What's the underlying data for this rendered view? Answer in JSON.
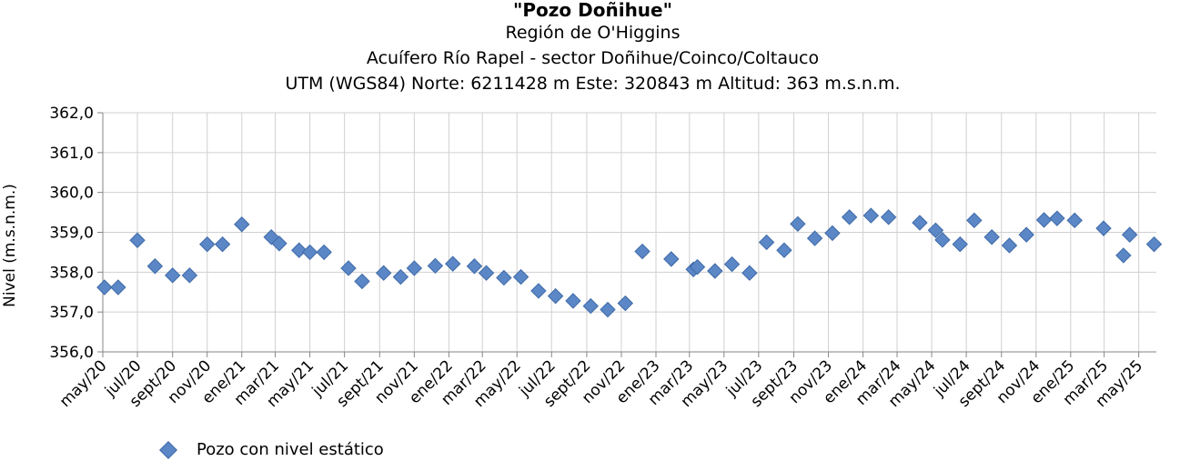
{
  "chart_data": {
    "type": "scatter",
    "title": "\"Pozo Doñihue\"",
    "subtitles": [
      "Región de O'Higgins",
      "Acuífero Río Rapel - sector Doñihue/Coinco/Coltauco",
      "UTM (WGS84) Norte: 6211428 m  Este: 320843 m   Altitud: 363 m.s.n.m."
    ],
    "ylabel": "Nivel (m.s.n.m.)",
    "xlabel": "",
    "ylim": [
      356.0,
      362.0
    ],
    "yticks": [
      "356,0",
      "357,0",
      "358,0",
      "359,0",
      "360,0",
      "361,0",
      "362,0"
    ],
    "xlim": [
      "2020-05-01",
      "2025-06-01"
    ],
    "xticks": [
      {
        "date": "2020-05-01",
        "label": "may/20"
      },
      {
        "date": "2020-07-01",
        "label": "jul/20"
      },
      {
        "date": "2020-09-01",
        "label": "sept/20"
      },
      {
        "date": "2020-11-01",
        "label": "nov/20"
      },
      {
        "date": "2021-01-01",
        "label": "ene/21"
      },
      {
        "date": "2021-03-01",
        "label": "mar/21"
      },
      {
        "date": "2021-05-01",
        "label": "may/21"
      },
      {
        "date": "2021-07-01",
        "label": "jul/21"
      },
      {
        "date": "2021-09-01",
        "label": "sept/21"
      },
      {
        "date": "2021-11-01",
        "label": "nov/21"
      },
      {
        "date": "2022-01-01",
        "label": "ene/22"
      },
      {
        "date": "2022-03-01",
        "label": "mar/22"
      },
      {
        "date": "2022-05-01",
        "label": "may/22"
      },
      {
        "date": "2022-07-01",
        "label": "jul/22"
      },
      {
        "date": "2022-09-01",
        "label": "sept/22"
      },
      {
        "date": "2022-11-01",
        "label": "nov/22"
      },
      {
        "date": "2023-01-01",
        "label": "ene/23"
      },
      {
        "date": "2023-03-01",
        "label": "mar/23"
      },
      {
        "date": "2023-05-01",
        "label": "may/23"
      },
      {
        "date": "2023-07-01",
        "label": "jul/23"
      },
      {
        "date": "2023-09-01",
        "label": "sept/23"
      },
      {
        "date": "2023-11-01",
        "label": "nov/23"
      },
      {
        "date": "2024-01-01",
        "label": "ene/24"
      },
      {
        "date": "2024-03-01",
        "label": "mar/24"
      },
      {
        "date": "2024-05-01",
        "label": "may/24"
      },
      {
        "date": "2024-07-01",
        "label": "jul/24"
      },
      {
        "date": "2024-09-01",
        "label": "sept/24"
      },
      {
        "date": "2024-11-01",
        "label": "nov/24"
      },
      {
        "date": "2025-01-01",
        "label": "ene/25"
      },
      {
        "date": "2025-03-01",
        "label": "mar/25"
      },
      {
        "date": "2025-05-01",
        "label": "may/25"
      }
    ],
    "grid": true,
    "legend_position": "bottom-left",
    "series": [
      {
        "name": "Pozo con nivel estático",
        "color": "#5b87c6",
        "marker": "diamond",
        "points": [
          [
            "2020-05-04",
            357.62
          ],
          [
            "2020-05-28",
            357.62
          ],
          [
            "2020-07-01",
            358.8
          ],
          [
            "2020-08-01",
            358.15
          ],
          [
            "2020-09-01",
            357.92
          ],
          [
            "2020-10-01",
            357.92
          ],
          [
            "2020-11-01",
            358.7
          ],
          [
            "2020-11-28",
            358.7
          ],
          [
            "2021-01-01",
            359.2
          ],
          [
            "2021-02-22",
            358.88
          ],
          [
            "2021-03-08",
            358.72
          ],
          [
            "2021-04-12",
            358.55
          ],
          [
            "2021-05-01",
            358.5
          ],
          [
            "2021-05-26",
            358.5
          ],
          [
            "2021-07-08",
            358.1
          ],
          [
            "2021-08-01",
            357.77
          ],
          [
            "2021-09-08",
            357.98
          ],
          [
            "2021-10-08",
            357.88
          ],
          [
            "2021-11-01",
            358.1
          ],
          [
            "2021-12-08",
            358.16
          ],
          [
            "2022-01-08",
            358.21
          ],
          [
            "2022-02-15",
            358.15
          ],
          [
            "2022-03-08",
            357.98
          ],
          [
            "2022-04-08",
            357.86
          ],
          [
            "2022-05-08",
            357.88
          ],
          [
            "2022-06-08",
            357.53
          ],
          [
            "2022-07-08",
            357.4
          ],
          [
            "2022-08-08",
            357.28
          ],
          [
            "2022-09-08",
            357.15
          ],
          [
            "2022-10-08",
            357.06
          ],
          [
            "2022-11-08",
            357.22
          ],
          [
            "2022-12-08",
            358.52
          ],
          [
            "2023-01-28",
            358.33
          ],
          [
            "2023-03-08",
            358.07
          ],
          [
            "2023-03-15",
            358.13
          ],
          [
            "2023-04-15",
            358.03
          ],
          [
            "2023-05-15",
            358.2
          ],
          [
            "2023-06-15",
            357.98
          ],
          [
            "2023-07-15",
            358.75
          ],
          [
            "2023-08-15",
            358.55
          ],
          [
            "2023-09-08",
            359.21
          ],
          [
            "2023-10-08",
            358.85
          ],
          [
            "2023-11-08",
            358.98
          ],
          [
            "2023-12-08",
            359.38
          ],
          [
            "2024-01-15",
            359.42
          ],
          [
            "2024-02-15",
            359.38
          ],
          [
            "2024-04-10",
            359.24
          ],
          [
            "2024-05-08",
            359.05
          ],
          [
            "2024-05-20",
            358.81
          ],
          [
            "2024-06-20",
            358.7
          ],
          [
            "2024-07-15",
            359.3
          ],
          [
            "2024-08-15",
            358.88
          ],
          [
            "2024-09-15",
            358.67
          ],
          [
            "2024-10-15",
            358.94
          ],
          [
            "2024-11-15",
            359.31
          ],
          [
            "2024-12-08",
            359.35
          ],
          [
            "2025-01-08",
            359.3
          ],
          [
            "2025-02-28",
            359.1
          ],
          [
            "2025-04-04",
            358.42
          ],
          [
            "2025-04-15",
            358.94
          ],
          [
            "2025-05-28",
            358.7
          ]
        ]
      }
    ]
  }
}
